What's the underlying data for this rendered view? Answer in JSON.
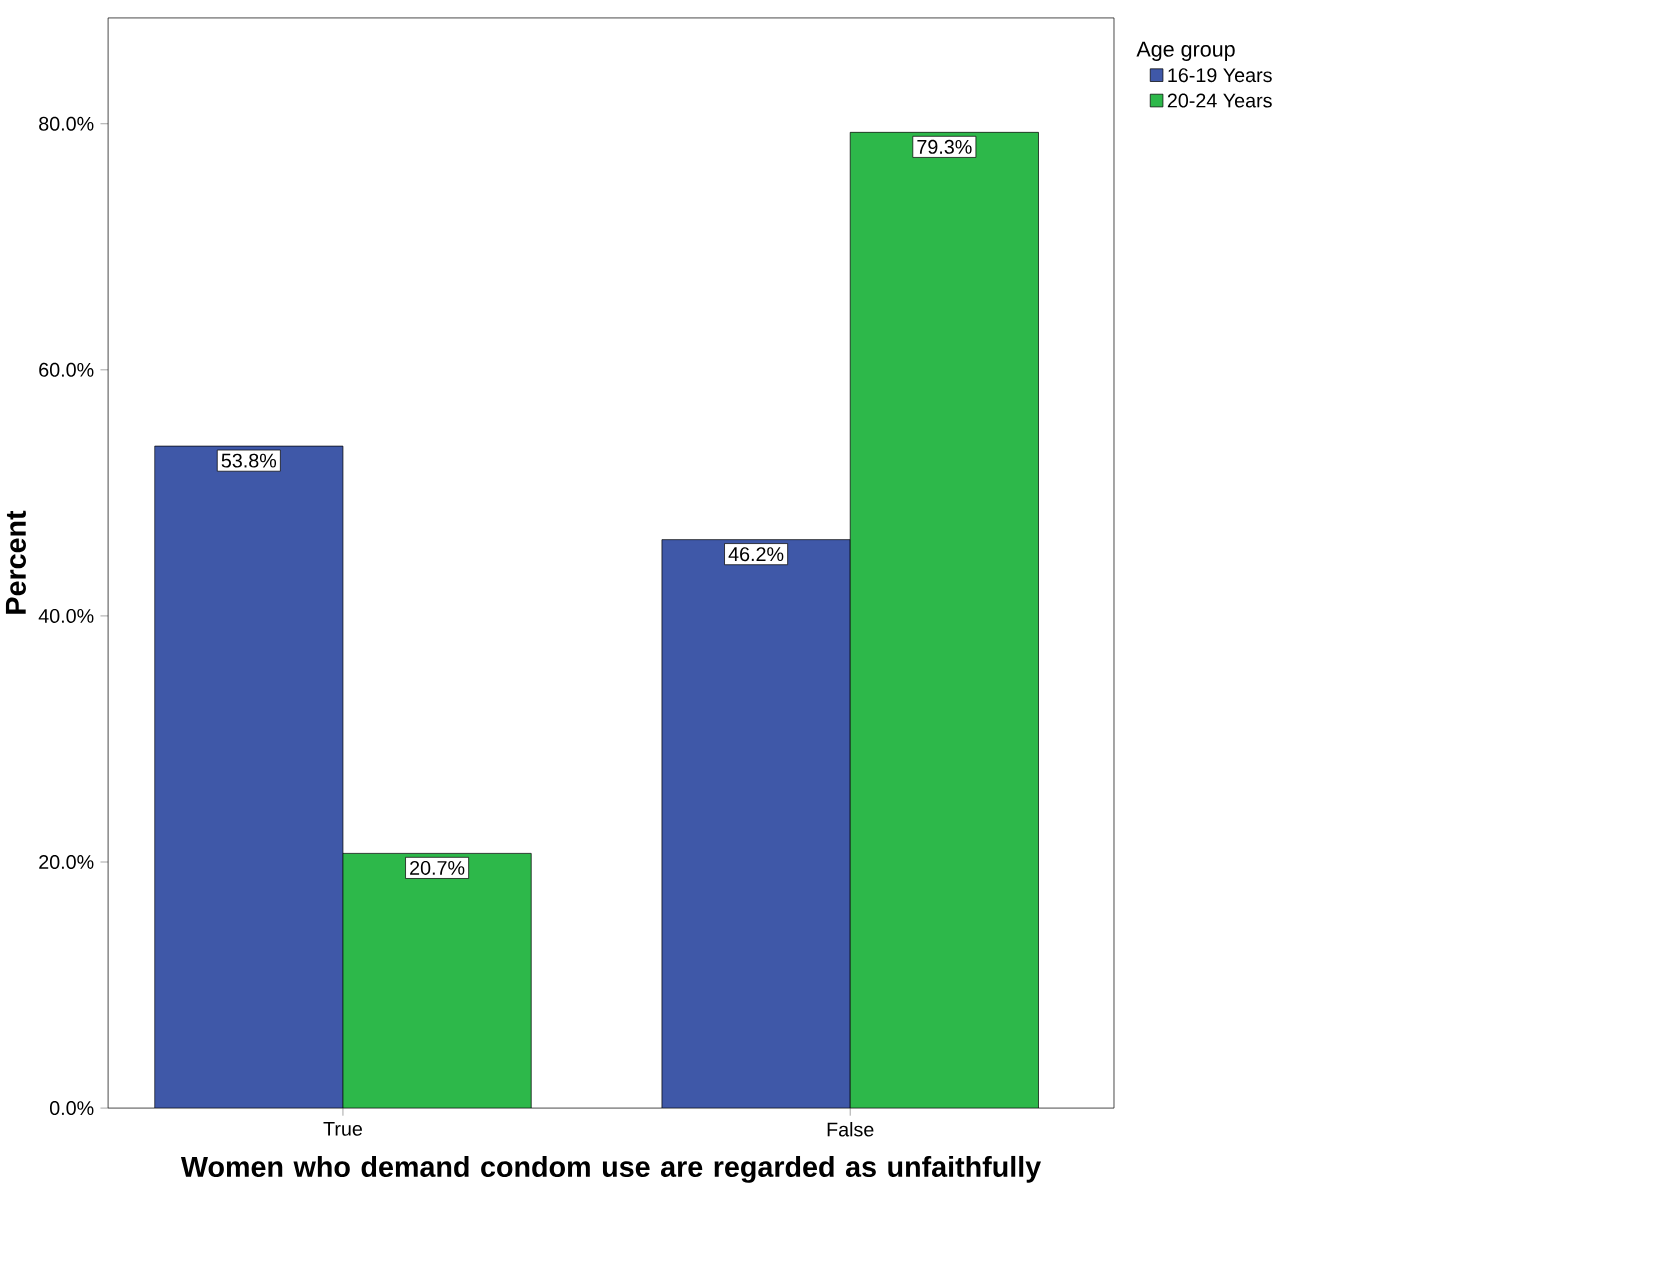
{
  "chart_data": {
    "type": "bar",
    "xlabel": "Women who demand condom use are regarded as unfaithfully",
    "ylabel": "Percent",
    "legend_title": "Age group",
    "legend": "top right",
    "categories": [
      "True",
      "False"
    ],
    "series": [
      {
        "name": "16-19 Years",
        "color": "#3f58a8",
        "values": [
          53.8,
          46.2
        ],
        "value_labels": [
          "53.8%",
          "46.2%"
        ]
      },
      {
        "name": "20-24 Years",
        "color": "#2db84a",
        "values": [
          20.7,
          79.3
        ],
        "value_labels": [
          "20.7%",
          "79.3%"
        ]
      }
    ],
    "ylim": [
      0,
      88.6
    ],
    "yticks": [
      {
        "value": 0,
        "label": "0.0%"
      },
      {
        "value": 20,
        "label": "20.0%"
      },
      {
        "value": 40,
        "label": "40.0%"
      },
      {
        "value": 60,
        "label": "60.0%"
      },
      {
        "value": 80,
        "label": "80.0%"
      }
    ]
  }
}
